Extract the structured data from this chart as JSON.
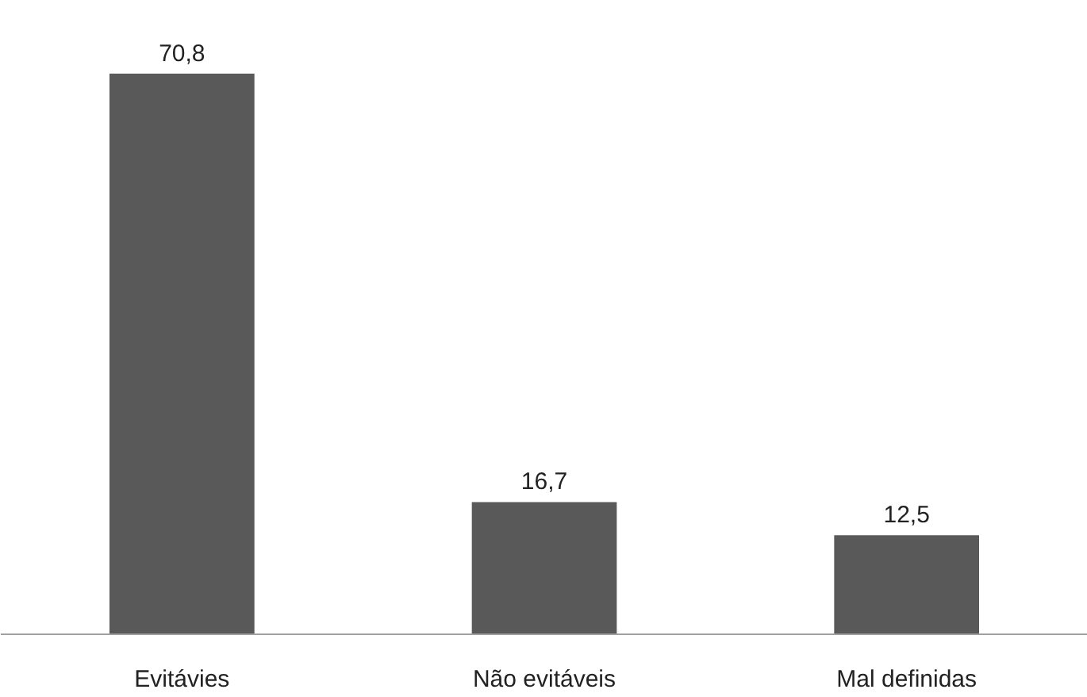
{
  "chart_data": {
    "type": "bar",
    "categories": [
      "Evitávies",
      "Não evitáveis",
      "Mal definidas"
    ],
    "values": [
      70.8,
      16.7,
      12.5
    ],
    "value_labels": [
      "70,8",
      "16,7",
      "12,5"
    ],
    "color": "#595959"
  }
}
